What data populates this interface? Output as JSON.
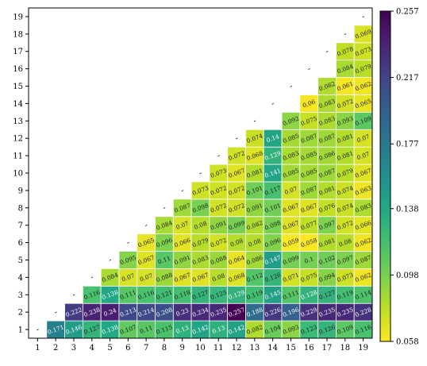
{
  "chart_data": {
    "type": "heatmap",
    "title": "",
    "xlabel": "",
    "ylabel": "",
    "x_ticks": [
      "1",
      "2",
      "3",
      "4",
      "5",
      "6",
      "7",
      "8",
      "9",
      "10",
      "11",
      "12",
      "13",
      "14",
      "15",
      "16",
      "17",
      "18",
      "19"
    ],
    "y_ticks": [
      "1",
      "2",
      "3",
      "4",
      "5",
      "6",
      "7",
      "8",
      "9",
      "10",
      "11",
      "12",
      "13",
      "14",
      "15",
      "16",
      "17",
      "18",
      "19"
    ],
    "diagonal_label": "-",
    "colorbar": {
      "colormap": "viridis_r",
      "min": 0.058,
      "max": 0.257,
      "ticks": [
        "0.058",
        "0.098",
        "0.138",
        "0.177",
        "0.217",
        "0.257"
      ]
    },
    "cells": [
      {
        "x": 2,
        "y": 1,
        "v": 0.171
      },
      {
        "x": 3,
        "y": 1,
        "v": 0.146
      },
      {
        "x": 3,
        "y": 2,
        "v": 0.222
      },
      {
        "x": 4,
        "y": 1,
        "v": 0.127
      },
      {
        "x": 4,
        "y": 2,
        "v": 0.238
      },
      {
        "x": 4,
        "y": 3,
        "v": 0.116
      },
      {
        "x": 5,
        "y": 1,
        "v": 0.138
      },
      {
        "x": 5,
        "y": 2,
        "v": 0.24
      },
      {
        "x": 5,
        "y": 3,
        "v": 0.138
      },
      {
        "x": 5,
        "y": 4,
        "v": 0.084
      },
      {
        "x": 6,
        "y": 1,
        "v": 0.107
      },
      {
        "x": 6,
        "y": 2,
        "v": 0.213
      },
      {
        "x": 6,
        "y": 3,
        "v": 0.111
      },
      {
        "x": 6,
        "y": 4,
        "v": 0.07
      },
      {
        "x": 6,
        "y": 5,
        "v": 0.095
      },
      {
        "x": 7,
        "y": 1,
        "v": 0.11
      },
      {
        "x": 7,
        "y": 2,
        "v": 0.214
      },
      {
        "x": 7,
        "y": 3,
        "v": 0.116
      },
      {
        "x": 7,
        "y": 4,
        "v": 0.07
      },
      {
        "x": 7,
        "y": 5,
        "v": 0.067
      },
      {
        "x": 7,
        "y": 6,
        "v": 0.065
      },
      {
        "x": 8,
        "y": 1,
        "v": 0.115
      },
      {
        "x": 8,
        "y": 2,
        "v": 0.208
      },
      {
        "x": 8,
        "y": 3,
        "v": 0.121
      },
      {
        "x": 8,
        "y": 4,
        "v": 0.088
      },
      {
        "x": 8,
        "y": 5,
        "v": 0.11
      },
      {
        "x": 8,
        "y": 6,
        "v": 0.096
      },
      {
        "x": 8,
        "y": 7,
        "v": 0.084
      },
      {
        "x": 9,
        "y": 1,
        "v": 0.13
      },
      {
        "x": 9,
        "y": 2,
        "v": 0.23
      },
      {
        "x": 9,
        "y": 3,
        "v": 0.118
      },
      {
        "x": 9,
        "y": 4,
        "v": 0.067
      },
      {
        "x": 9,
        "y": 5,
        "v": 0.091
      },
      {
        "x": 9,
        "y": 6,
        "v": 0.066
      },
      {
        "x": 9,
        "y": 7,
        "v": 0.07
      },
      {
        "x": 9,
        "y": 8,
        "v": 0.087
      },
      {
        "x": 10,
        "y": 1,
        "v": 0.142
      },
      {
        "x": 10,
        "y": 2,
        "v": 0.234
      },
      {
        "x": 10,
        "y": 3,
        "v": 0.127
      },
      {
        "x": 10,
        "y": 4,
        "v": 0.067
      },
      {
        "x": 10,
        "y": 5,
        "v": 0.083
      },
      {
        "x": 10,
        "y": 6,
        "v": 0.079
      },
      {
        "x": 10,
        "y": 7,
        "v": 0.08
      },
      {
        "x": 10,
        "y": 8,
        "v": 0.098
      },
      {
        "x": 10,
        "y": 9,
        "v": 0.073
      },
      {
        "x": 11,
        "y": 1,
        "v": 0.13
      },
      {
        "x": 11,
        "y": 2,
        "v": 0.235
      },
      {
        "x": 11,
        "y": 3,
        "v": 0.125
      },
      {
        "x": 11,
        "y": 4,
        "v": 0.08
      },
      {
        "x": 11,
        "y": 5,
        "v": 0.088
      },
      {
        "x": 11,
        "y": 6,
        "v": 0.072
      },
      {
        "x": 11,
        "y": 7,
        "v": 0.091
      },
      {
        "x": 11,
        "y": 8,
        "v": 0.072
      },
      {
        "x": 11,
        "y": 9,
        "v": 0.072
      },
      {
        "x": 11,
        "y": 10,
        "v": 0.073
      },
      {
        "x": 12,
        "y": 1,
        "v": 0.142
      },
      {
        "x": 12,
        "y": 2,
        "v": 0.257
      },
      {
        "x": 12,
        "y": 3,
        "v": 0.129
      },
      {
        "x": 12,
        "y": 4,
        "v": 0.068
      },
      {
        "x": 12,
        "y": 5,
        "v": 0.064
      },
      {
        "x": 12,
        "y": 6,
        "v": 0.08
      },
      {
        "x": 12,
        "y": 7,
        "v": 0.099
      },
      {
        "x": 12,
        "y": 8,
        "v": 0.072
      },
      {
        "x": 12,
        "y": 9,
        "v": 0.072
      },
      {
        "x": 12,
        "y": 10,
        "v": 0.067
      },
      {
        "x": 12,
        "y": 11,
        "v": 0.072
      },
      {
        "x": 13,
        "y": 1,
        "v": 0.082
      },
      {
        "x": 13,
        "y": 2,
        "v": 0.188
      },
      {
        "x": 13,
        "y": 3,
        "v": 0.119
      },
      {
        "x": 13,
        "y": 4,
        "v": 0.112
      },
      {
        "x": 13,
        "y": 5,
        "v": 0.086
      },
      {
        "x": 13,
        "y": 6,
        "v": 0.08
      },
      {
        "x": 13,
        "y": 7,
        "v": 0.082
      },
      {
        "x": 13,
        "y": 8,
        "v": 0.091
      },
      {
        "x": 13,
        "y": 9,
        "v": 0.101
      },
      {
        "x": 13,
        "y": 10,
        "v": 0.081
      },
      {
        "x": 13,
        "y": 11,
        "v": 0.068
      },
      {
        "x": 13,
        "y": 12,
        "v": 0.074
      },
      {
        "x": 14,
        "y": 1,
        "v": 0.104
      },
      {
        "x": 14,
        "y": 2,
        "v": 0.226
      },
      {
        "x": 14,
        "y": 3,
        "v": 0.145
      },
      {
        "x": 14,
        "y": 4,
        "v": 0.126
      },
      {
        "x": 14,
        "y": 5,
        "v": 0.147
      },
      {
        "x": 14,
        "y": 6,
        "v": 0.096
      },
      {
        "x": 14,
        "y": 7,
        "v": 0.098
      },
      {
        "x": 14,
        "y": 8,
        "v": 0.101
      },
      {
        "x": 14,
        "y": 9,
        "v": 0.117
      },
      {
        "x": 14,
        "y": 10,
        "v": 0.141
      },
      {
        "x": 14,
        "y": 11,
        "v": 0.129
      },
      {
        "x": 14,
        "y": 12,
        "v": 0.14
      },
      {
        "x": 15,
        "y": 1,
        "v": 0.093
      },
      {
        "x": 15,
        "y": 2,
        "v": 0.196
      },
      {
        "x": 15,
        "y": 3,
        "v": 0.111
      },
      {
        "x": 15,
        "y": 4,
        "v": 0.071
      },
      {
        "x": 15,
        "y": 5,
        "v": 0.099
      },
      {
        "x": 15,
        "y": 6,
        "v": 0.059
      },
      {
        "x": 15,
        "y": 7,
        "v": 0.067
      },
      {
        "x": 15,
        "y": 8,
        "v": 0.067
      },
      {
        "x": 15,
        "y": 9,
        "v": 0.07
      },
      {
        "x": 15,
        "y": 10,
        "v": 0.085
      },
      {
        "x": 15,
        "y": 11,
        "v": 0.083
      },
      {
        "x": 15,
        "y": 12,
        "v": 0.085
      },
      {
        "x": 15,
        "y": 13,
        "v": 0.092
      },
      {
        "x": 16,
        "y": 1,
        "v": 0.123
      },
      {
        "x": 16,
        "y": 2,
        "v": 0.229
      },
      {
        "x": 16,
        "y": 3,
        "v": 0.128
      },
      {
        "x": 16,
        "y": 4,
        "v": 0.075
      },
      {
        "x": 16,
        "y": 5,
        "v": 0.1
      },
      {
        "x": 16,
        "y": 6,
        "v": 0.058
      },
      {
        "x": 16,
        "y": 7,
        "v": 0.077
      },
      {
        "x": 16,
        "y": 8,
        "v": 0.067
      },
      {
        "x": 16,
        "y": 9,
        "v": 0.087
      },
      {
        "x": 16,
        "y": 10,
        "v": 0.085
      },
      {
        "x": 16,
        "y": 11,
        "v": 0.085
      },
      {
        "x": 16,
        "y": 12,
        "v": 0.087
      },
      {
        "x": 16,
        "y": 13,
        "v": 0.075
      },
      {
        "x": 16,
        "y": 14,
        "v": 0.06
      },
      {
        "x": 17,
        "y": 1,
        "v": 0.126
      },
      {
        "x": 17,
        "y": 2,
        "v": 0.235
      },
      {
        "x": 17,
        "y": 3,
        "v": 0.127
      },
      {
        "x": 17,
        "y": 4,
        "v": 0.094
      },
      {
        "x": 17,
        "y": 5,
        "v": 0.102
      },
      {
        "x": 17,
        "y": 6,
        "v": 0.081
      },
      {
        "x": 17,
        "y": 7,
        "v": 0.097
      },
      {
        "x": 17,
        "y": 8,
        "v": 0.076
      },
      {
        "x": 17,
        "y": 9,
        "v": 0.081
      },
      {
        "x": 17,
        "y": 10,
        "v": 0.087
      },
      {
        "x": 17,
        "y": 11,
        "v": 0.086
      },
      {
        "x": 17,
        "y": 12,
        "v": 0.087
      },
      {
        "x": 17,
        "y": 13,
        "v": 0.083
      },
      {
        "x": 17,
        "y": 14,
        "v": 0.083
      },
      {
        "x": 17,
        "y": 15,
        "v": 0.082
      },
      {
        "x": 18,
        "y": 1,
        "v": 0.109
      },
      {
        "x": 18,
        "y": 2,
        "v": 0.235
      },
      {
        "x": 18,
        "y": 3,
        "v": 0.119
      },
      {
        "x": 18,
        "y": 4,
        "v": 0.073
      },
      {
        "x": 18,
        "y": 5,
        "v": 0.097
      },
      {
        "x": 18,
        "y": 6,
        "v": 0.08
      },
      {
        "x": 18,
        "y": 7,
        "v": 0.072
      },
      {
        "x": 18,
        "y": 8,
        "v": 0.074
      },
      {
        "x": 18,
        "y": 9,
        "v": 0.074
      },
      {
        "x": 18,
        "y": 10,
        "v": 0.079
      },
      {
        "x": 18,
        "y": 11,
        "v": 0.081
      },
      {
        "x": 18,
        "y": 12,
        "v": 0.081
      },
      {
        "x": 18,
        "y": 13,
        "v": 0.093
      },
      {
        "x": 18,
        "y": 14,
        "v": 0.072
      },
      {
        "x": 18,
        "y": 15,
        "v": 0.061
      },
      {
        "x": 18,
        "y": 16,
        "v": 0.084
      },
      {
        "x": 18,
        "y": 17,
        "v": 0.078
      },
      {
        "x": 19,
        "y": 1,
        "v": 0.116
      },
      {
        "x": 19,
        "y": 2,
        "v": 0.228
      },
      {
        "x": 19,
        "y": 3,
        "v": 0.114
      },
      {
        "x": 19,
        "y": 4,
        "v": 0.062
      },
      {
        "x": 19,
        "y": 5,
        "v": 0.087
      },
      {
        "x": 19,
        "y": 6,
        "v": 0.062
      },
      {
        "x": 19,
        "y": 7,
        "v": 0.066
      },
      {
        "x": 19,
        "y": 8,
        "v": 0.083
      },
      {
        "x": 19,
        "y": 9,
        "v": 0.063
      },
      {
        "x": 19,
        "y": 10,
        "v": 0.067
      },
      {
        "x": 19,
        "y": 11,
        "v": 0.07
      },
      {
        "x": 19,
        "y": 12,
        "v": 0.07
      },
      {
        "x": 19,
        "y": 13,
        "v": 0.109
      },
      {
        "x": 19,
        "y": 14,
        "v": 0.065
      },
      {
        "x": 19,
        "y": 15,
        "v": 0.062
      },
      {
        "x": 19,
        "y": 16,
        "v": 0.079
      },
      {
        "x": 19,
        "y": 17,
        "v": 0.073
      },
      {
        "x": 19,
        "y": 18,
        "v": 0.069
      }
    ]
  }
}
